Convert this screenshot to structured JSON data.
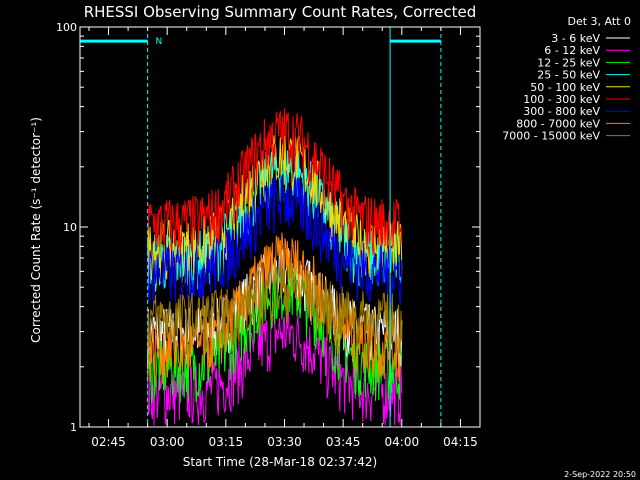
{
  "chart_data": {
    "type": "line",
    "title": "RHESSI Observing Summary Count Rates, Corrected",
    "xlabel": "Start Time (28-Mar-18 02:37:42)",
    "ylabel": "Corrected Count Rate (s⁻¹ detector⁻¹)",
    "yscale": "log",
    "xlim": [
      "02:37:42",
      "04:20:00"
    ],
    "ylim": [
      1,
      100
    ],
    "x_ticks": [
      "02:45",
      "03:00",
      "03:15",
      "03:30",
      "03:45",
      "04:00",
      "04:15"
    ],
    "y_ticks": [
      "1",
      "10",
      "100"
    ],
    "legend_title": "Det 3, Att 0",
    "legend_position": "right",
    "data_span": [
      "02:55",
      "04:00"
    ],
    "peak_time": "03:30",
    "series": [
      {
        "name": "3 - 6 keV",
        "color": "#ffffff",
        "baseline": 3.0,
        "peak": 6
      },
      {
        "name": "6 - 12 keV",
        "color": "#ff00ff",
        "baseline": 1.5,
        "peak": 3
      },
      {
        "name": "12 - 25 keV",
        "color": "#00ff00",
        "baseline": 2.0,
        "peak": 5
      },
      {
        "name": "25 - 50 keV",
        "color": "#00ffff",
        "baseline": 7.0,
        "peak": 20
      },
      {
        "name": "50 - 100 keV",
        "color": "#ffd700",
        "baseline": 8.0,
        "peak": 23
      },
      {
        "name": "100 - 300 keV",
        "color": "#ff0000",
        "baseline": 10.5,
        "peak": 30
      },
      {
        "name": "300 - 800 keV",
        "color": "#0000ff",
        "baseline": 6.0,
        "peak": 14
      },
      {
        "name": "800 - 7000 keV",
        "color": "#ff8000",
        "baseline": 2.5,
        "peak": 7
      },
      {
        "name": "7000 - 15000 keV",
        "color": "#a07800",
        "baseline": 3.5,
        "peak": 5
      }
    ],
    "annotations": [
      {
        "type": "bar",
        "label": "",
        "start": "02:37:42",
        "end": "02:55",
        "value": 85
      },
      {
        "type": "label",
        "text": "N",
        "time": "02:57",
        "value": 85
      },
      {
        "type": "bar",
        "label": "",
        "start": "03:57",
        "end": "04:10",
        "value": 85
      },
      {
        "type": "vline",
        "style": "solid",
        "time": "02:37:42"
      },
      {
        "type": "vline",
        "style": "dashed",
        "time": "02:55"
      },
      {
        "type": "vline",
        "style": "solid",
        "time": "03:57"
      },
      {
        "type": "vline",
        "style": "dashed",
        "time": "04:10"
      }
    ],
    "footer_date": "2-Sep-2022 20:50"
  }
}
